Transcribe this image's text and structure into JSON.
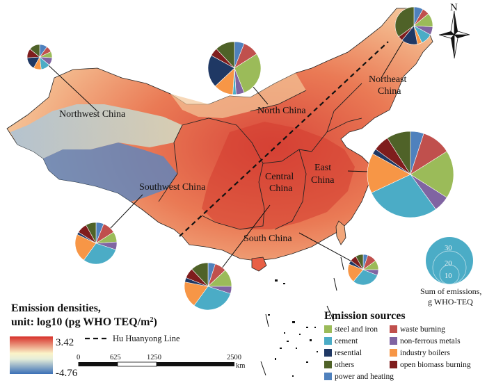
{
  "colors": {
    "steel_and_iron": "#9bbb59",
    "cement": "#4bacc6",
    "resential": "#1f3864",
    "others": "#4f6228",
    "power_and_heating": "#4f81bd",
    "waste_burning": "#c0504d",
    "non_ferrous_metals": "#8064a2",
    "industry_boilers": "#f79646",
    "open_biomass_burning": "#7f1d1d",
    "ramp_high": "#d7302a",
    "ramp_mid": "#fbf3c8",
    "ramp_low": "#3b6fb6"
  },
  "regions": [
    {
      "key": "northwest",
      "label": "Northwest China"
    },
    {
      "key": "north",
      "label": "North China"
    },
    {
      "key": "northeast_line1",
      "label": "Northeast"
    },
    {
      "key": "northeast_line2",
      "label": "China"
    },
    {
      "key": "southwest",
      "label": "Southwest China"
    },
    {
      "key": "central_line1",
      "label": "Central"
    },
    {
      "key": "central_line2",
      "label": "China"
    },
    {
      "key": "east_line1",
      "label": "East"
    },
    {
      "key": "east_line2",
      "label": "China"
    },
    {
      "key": "south",
      "label": "South China"
    }
  ],
  "pies": {
    "northeast": [
      0.08,
      0.06,
      0.12,
      0.07,
      0.1,
      0.04,
      0.14,
      0.04,
      0.35
    ],
    "northwest": [
      0.1,
      0.08,
      0.08,
      0.1,
      0.12,
      0.1,
      0.16,
      0.12,
      0.14
    ],
    "north": [
      0.06,
      0.1,
      0.28,
      0.05,
      0.02,
      0.12,
      0.2,
      0.05,
      0.12
    ],
    "east": [
      0.05,
      0.11,
      0.18,
      0.06,
      0.28,
      0.15,
      0.02,
      0.06,
      0.09
    ],
    "southwest": [
      0.06,
      0.1,
      0.08,
      0.06,
      0.3,
      0.22,
      0.02,
      0.08,
      0.08
    ],
    "central": [
      0.05,
      0.08,
      0.12,
      0.05,
      0.3,
      0.18,
      0.03,
      0.07,
      0.12
    ],
    "south": [
      0.05,
      0.1,
      0.1,
      0.06,
      0.3,
      0.2,
      0.04,
      0.07,
      0.08
    ]
  },
  "hu_line_label": "Hu Huanyong Line",
  "density_legend": {
    "title_line1": "Emission densities,",
    "title_line2_prefix": "unit: log10 (pg WHO TEQ/m",
    "title_line2_sup": "2",
    "title_line2_suffix": ")",
    "max": "3.42",
    "min": "-4.76"
  },
  "scale_bar": {
    "ticks": [
      "0",
      "625",
      "1250",
      "2500"
    ],
    "unit": "km"
  },
  "emission_sources": {
    "title": "Emission sources",
    "left": [
      {
        "label": "steel and iron",
        "color_key": "steel_and_iron"
      },
      {
        "label": "cement",
        "color_key": "cement"
      },
      {
        "label": "resential",
        "color_key": "resential"
      },
      {
        "label": "others",
        "color_key": "others"
      },
      {
        "label": "power and heating",
        "color_key": "power_and_heating"
      }
    ],
    "right": [
      {
        "label": "waste burning",
        "color_key": "waste_burning"
      },
      {
        "label": "non-ferrous metals",
        "color_key": "non_ferrous_metals"
      },
      {
        "label": "industry boilers",
        "color_key": "industry_boilers"
      },
      {
        "label": "open biomass burning",
        "color_key": "open_biomass_burning"
      }
    ]
  },
  "size_legend": {
    "values": [
      "30",
      "20",
      "10"
    ],
    "caption_line1": "Sum of emissions,",
    "caption_line2": "g WHO-TEQ"
  },
  "north_arrow": "N"
}
